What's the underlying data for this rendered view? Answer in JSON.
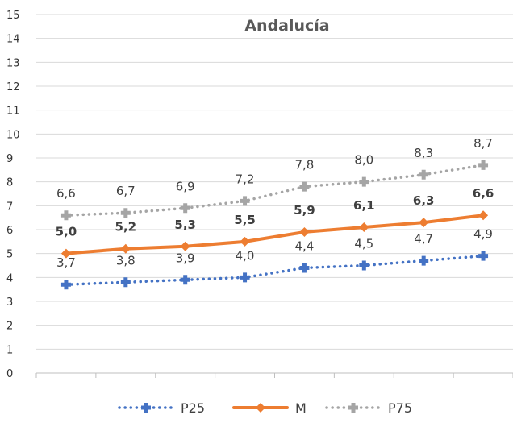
{
  "chart_data": {
    "type": "line",
    "title": "Andalucía",
    "xlabel": "",
    "ylabel": "",
    "ylim": [
      0,
      15
    ],
    "yticks": [
      "0",
      "1",
      "2",
      "3",
      "4",
      "5",
      "6",
      "7",
      "8",
      "9",
      "10",
      "11",
      "12",
      "13",
      "14",
      "15"
    ],
    "grid": true,
    "legend": "bottom",
    "categories_count": 8,
    "series": [
      {
        "name": "P25",
        "values": [
          3.7,
          3.8,
          3.9,
          4.0,
          4.4,
          4.5,
          4.7,
          4.9
        ],
        "labels": [
          "3,7",
          "3,8",
          "3,9",
          "4,0",
          "4,4",
          "4,5",
          "4,7",
          "4,9"
        ],
        "color": "#4472C4",
        "style": "dotted"
      },
      {
        "name": "M",
        "values": [
          5.0,
          5.2,
          5.3,
          5.5,
          5.9,
          6.1,
          6.3,
          6.6
        ],
        "labels": [
          "5,0",
          "5,2",
          "5,3",
          "5,5",
          "5,9",
          "6,1",
          "6,3",
          "6,6"
        ],
        "color": "#ED7D31",
        "style": "solid"
      },
      {
        "name": "P75",
        "values": [
          6.6,
          6.7,
          6.9,
          7.2,
          7.8,
          8.0,
          8.3,
          8.7
        ],
        "labels": [
          "6,6",
          "6,7",
          "6,9",
          "7,2",
          "7,8",
          "8,0",
          "8,3",
          "8,7"
        ],
        "color": "#A5A5A5",
        "style": "dotted"
      }
    ]
  }
}
